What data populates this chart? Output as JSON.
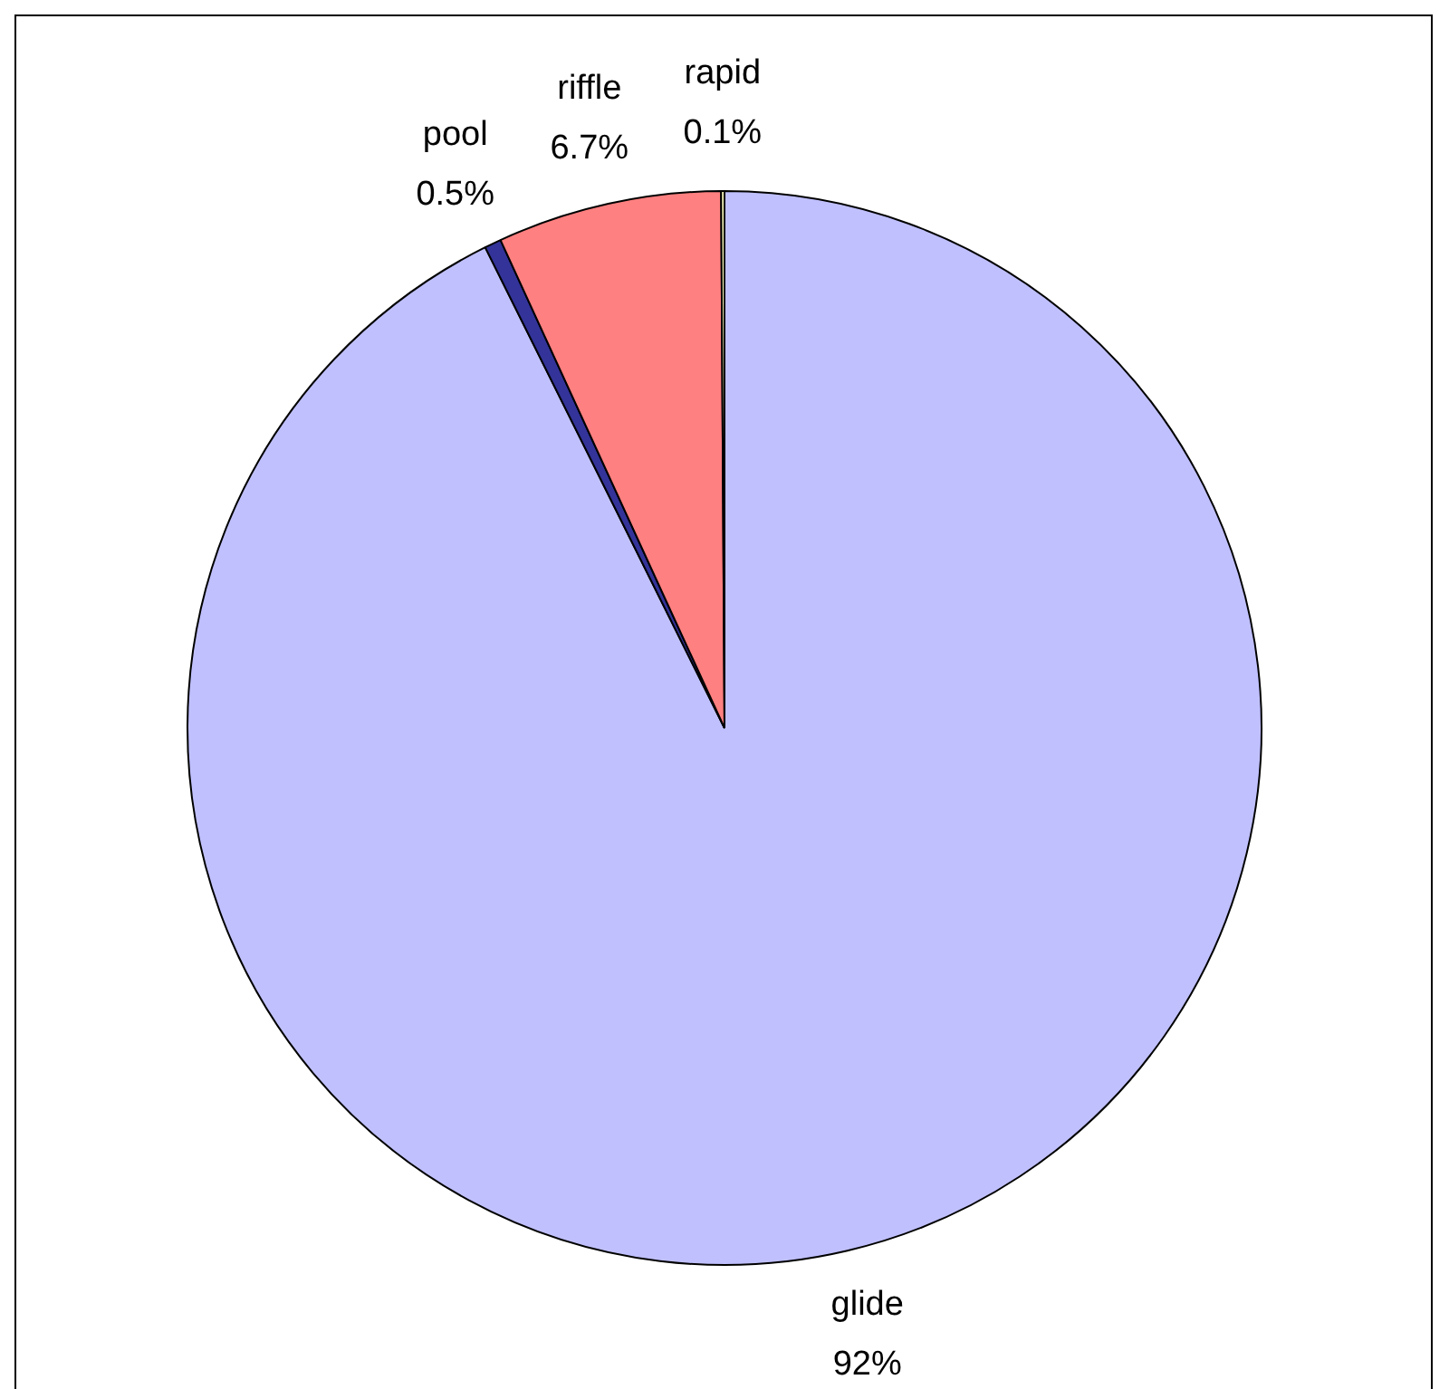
{
  "chart_data": {
    "type": "pie",
    "categories": [
      "glide",
      "pool",
      "riffle",
      "rapid"
    ],
    "values": [
      92,
      0.5,
      6.7,
      0.1
    ],
    "colors": [
      "#c0c0ff",
      "#333399",
      "#ff8080",
      "#ffffc0"
    ],
    "value_labels": [
      "92%",
      "0.5%",
      "6.7%",
      "0.1%"
    ],
    "legend": false
  }
}
